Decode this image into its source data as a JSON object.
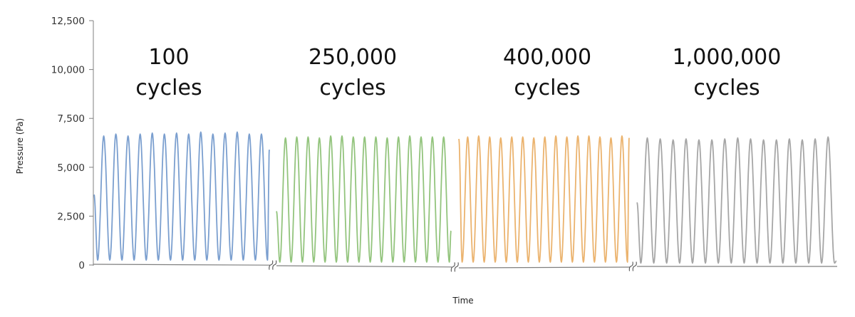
{
  "chart_data": {
    "type": "line",
    "title": "",
    "xlabel": "Time",
    "ylabel": "Pressure (Pa)",
    "ylim": [
      0,
      12500
    ],
    "yticks": [
      0,
      2500,
      5000,
      7500,
      10000,
      12500
    ],
    "ytick_labels": [
      "0",
      "2,500",
      "5,000",
      "7,500",
      "10,000",
      "12,500"
    ],
    "axis_break": true,
    "grid": false,
    "legend": "none",
    "series": [
      {
        "annotation": [
          "100",
          "cycles"
        ],
        "color": "#7b9fcf",
        "peaks": [
          6600,
          6700,
          6600,
          6700,
          6750,
          6700,
          6750,
          6700,
          6800,
          6700,
          6750,
          6800,
          6700,
          6700
        ],
        "trough": 250,
        "start_value": 3600,
        "end_value": 5900
      },
      {
        "annotation": [
          "250,000",
          "cycles"
        ],
        "color": "#93c47d",
        "peaks": [
          6500,
          6550,
          6550,
          6500,
          6600,
          6600,
          6550,
          6550,
          6550,
          6500,
          6550,
          6600,
          6550,
          6550,
          6550
        ],
        "trough": 150,
        "start_value": 2750,
        "end_value": 1750
      },
      {
        "annotation": [
          "400,000",
          "cycles"
        ],
        "color": "#ebb36e",
        "peaks": [
          6550,
          6600,
          6550,
          6500,
          6550,
          6550,
          6500,
          6550,
          6600,
          6550,
          6600,
          6600,
          6550,
          6500,
          6600
        ],
        "trough": 150,
        "start_value": 6450,
        "end_value": 6500
      },
      {
        "annotation": [
          "1,000,000",
          "cycles"
        ],
        "color": "#a6a6a6",
        "peaks": [
          6500,
          6450,
          6400,
          6450,
          6400,
          6400,
          6450,
          6500,
          6450,
          6400,
          6400,
          6450,
          6400,
          6450,
          6550
        ],
        "trough": 100,
        "start_value": 3200,
        "end_value": 200
      }
    ]
  }
}
